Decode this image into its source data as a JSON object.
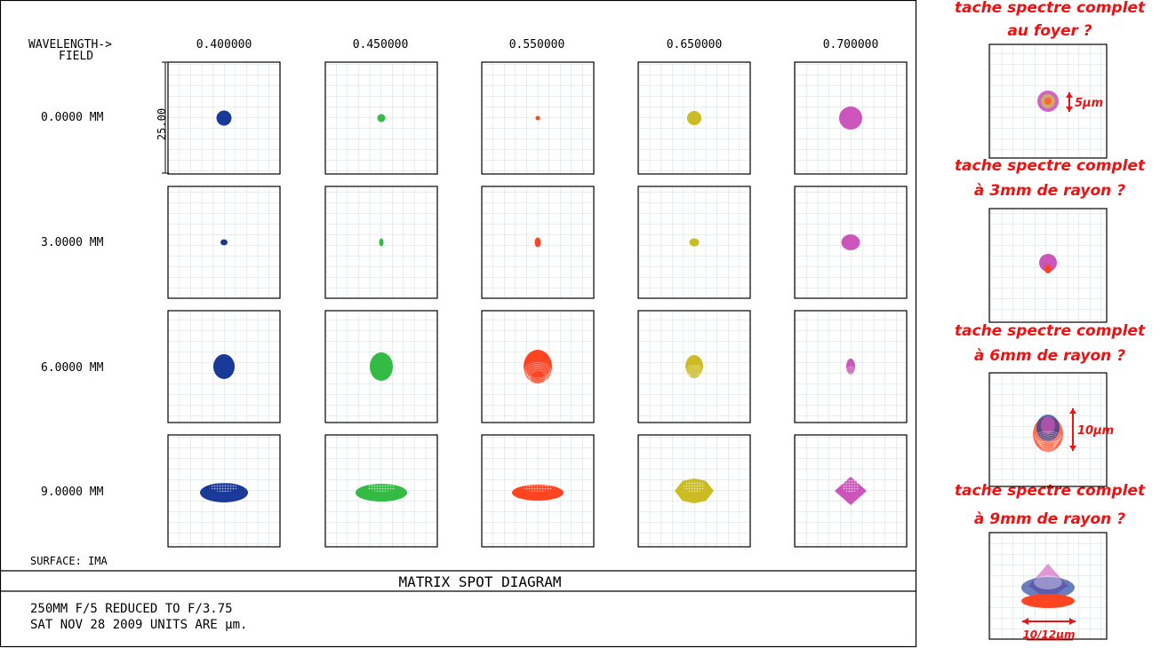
{
  "header": {
    "wavelength_label": "WAVELENGTH->",
    "field_label": "FIELD",
    "wavelengths": [
      "0.400000",
      "0.450000",
      "0.550000",
      "0.650000",
      "0.700000"
    ]
  },
  "fields": [
    "0.0000 MM",
    "3.0000 MM",
    "6.0000 MM",
    "9.0000 MM"
  ],
  "scale_label": "25.00",
  "surface_label": "SURFACE: IMA",
  "title": "MATRIX SPOT DIAGRAM",
  "footer": {
    "line1": "250MM F/5 REDUCED TO F/3.75",
    "line2": "SAT NOV 28 2009  UNITS ARE µm."
  },
  "colors": {
    "0.400000": "#1a3a9a",
    "0.450000": "#33bb44",
    "0.550000": "#ff4422",
    "0.650000": "#ccbb22",
    "0.700000": "#cc55bb",
    "annotation": "#ee1111"
  },
  "side_panel": {
    "titles": [
      [
        "tache spectre complet",
        "au foyer ?"
      ],
      [
        "tache spectre complet",
        "à 3mm de rayon ?"
      ],
      [
        "tache spectre complet",
        "à 6mm de rayon ?"
      ],
      [
        "tache spectre complet",
        "à 9mm de rayon ?"
      ]
    ],
    "dimensions": [
      "5µm",
      "10µm",
      "10/12µm"
    ]
  }
}
